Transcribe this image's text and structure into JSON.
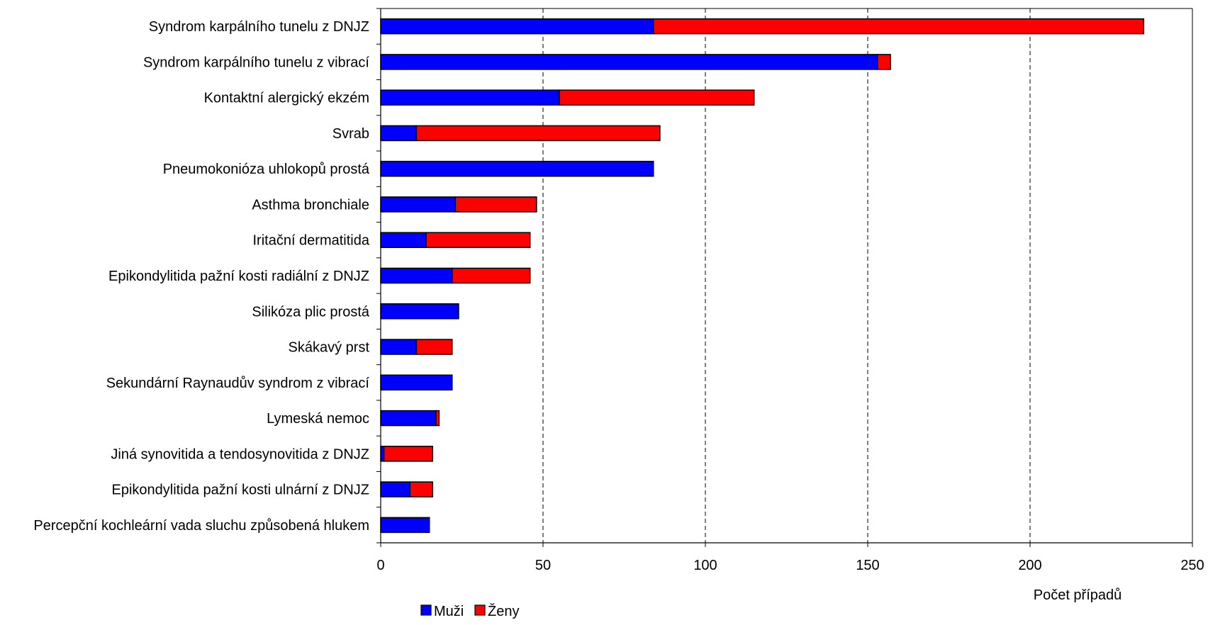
{
  "chart_data": {
    "type": "bar",
    "orientation": "horizontal",
    "stacked": true,
    "categories": [
      "Syndrom karpálního tunelu z DNJZ",
      "Syndrom karpálního tunelu z vibrací",
      "Kontaktní alergický ekzém",
      "Svrab",
      "Pneumokonióza uhlokopů prostá",
      "Asthma bronchiale",
      "Iritační dermatitida",
      "Epikondylitida pažní kosti radiální z DNJZ",
      "Silikóza plic prostá",
      "Skákavý prst",
      "Sekundární Raynaudův syndrom z vibrací",
      "Lymeská nemoc",
      "Jiná synovitida a tendosynovitida z DNJZ",
      "Epikondylitida pažní kosti ulnární z DNJZ",
      "Percepční kochleární vada sluchu způsobená hlukem"
    ],
    "series": [
      {
        "name": "Muži",
        "color": "#0000ff",
        "values": [
          84,
          153,
          55,
          11,
          84,
          23,
          14,
          22,
          24,
          11,
          22,
          17,
          1,
          9,
          15
        ]
      },
      {
        "name": "Ženy",
        "color": "#ff0000",
        "values": [
          151,
          4,
          60,
          75,
          0,
          25,
          32,
          24,
          0,
          11,
          0,
          1,
          15,
          7,
          0
        ]
      }
    ],
    "title": "",
    "xlabel": "Počet případů",
    "ylabel": "",
    "xlim": [
      0,
      250
    ],
    "xticks": [
      0,
      50,
      100,
      150,
      200,
      250
    ],
    "grid": "vertical-dashed",
    "legend": "bottom-left"
  }
}
